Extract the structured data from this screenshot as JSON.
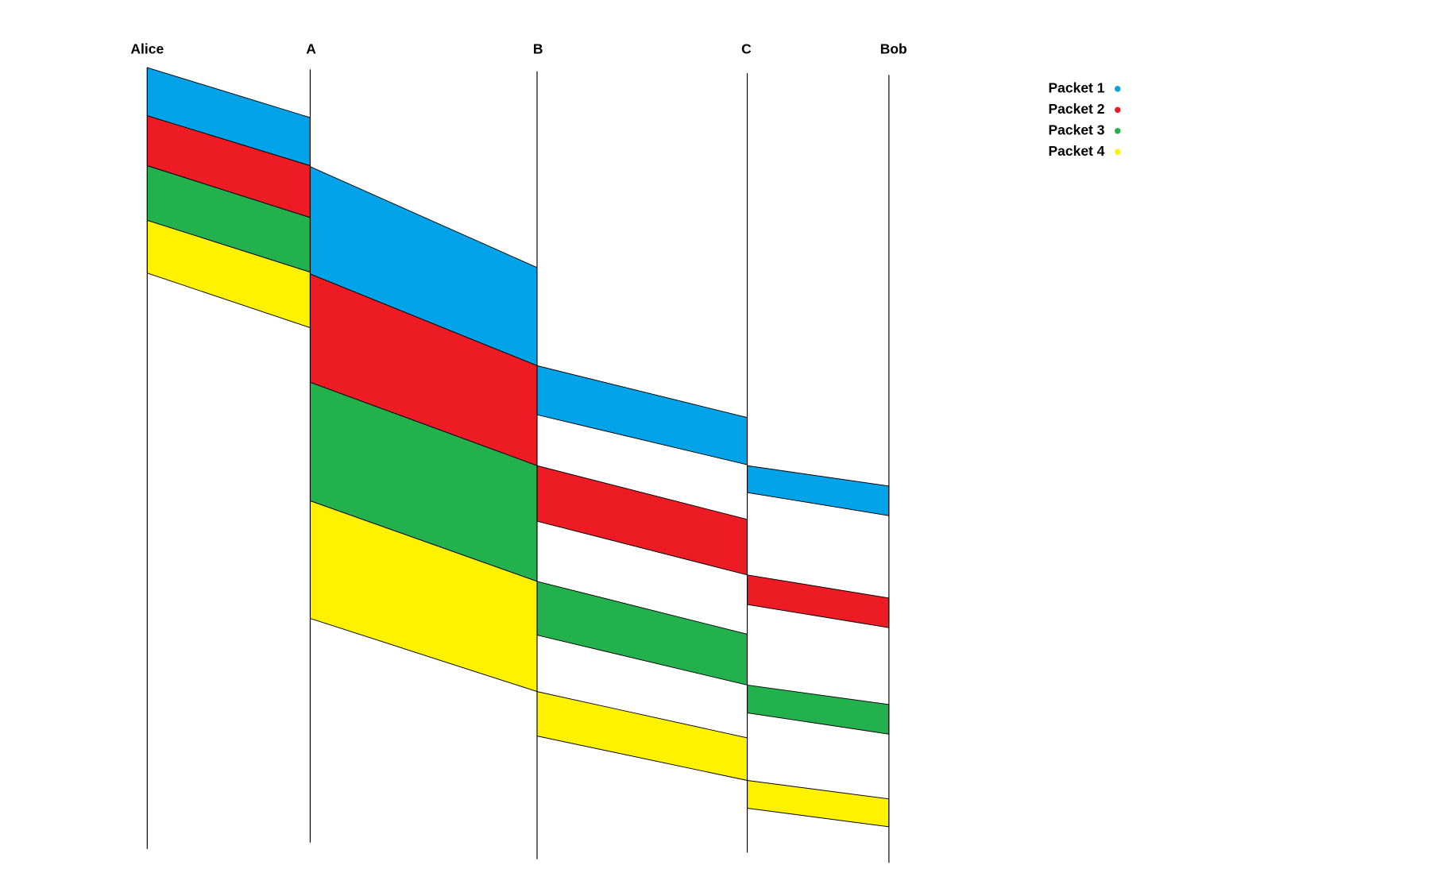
{
  "nodes": [
    {
      "label": "Alice"
    },
    {
      "label": "A"
    },
    {
      "label": "B"
    },
    {
      "label": "C"
    },
    {
      "label": "Bob"
    }
  ],
  "legend": [
    {
      "name": "Packet 1",
      "color": "#00a2e8"
    },
    {
      "name": "Packet 2",
      "color": "#ed1c24"
    },
    {
      "name": "Packet 3",
      "color": "#22b14c"
    },
    {
      "name": "Packet 4",
      "color": "#fff200"
    }
  ]
}
